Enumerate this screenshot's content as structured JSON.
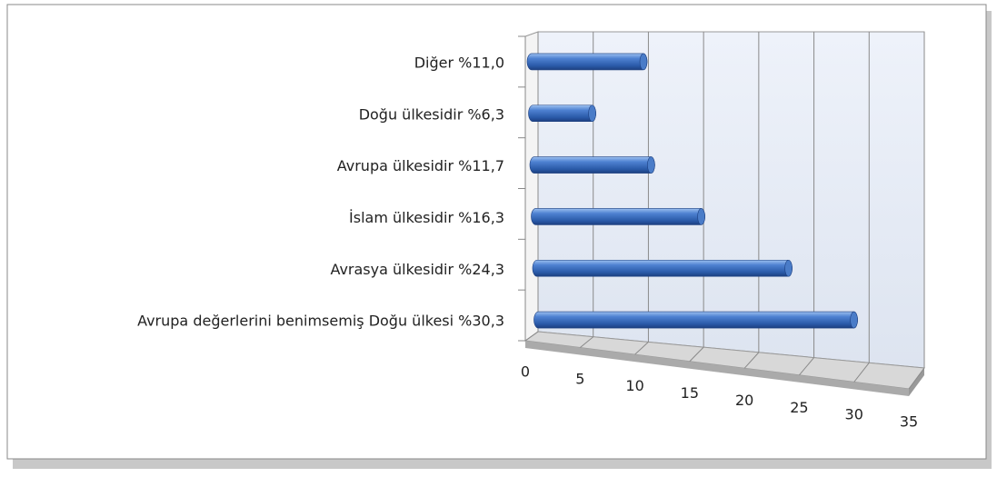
{
  "chart_data": {
    "type": "bar",
    "orientation": "horizontal",
    "categories": [
      "Diğer %11,0",
      "Doğu ülkesidir %6,3",
      "Avrupa ülkesidir %11,7",
      "İslam ülkesidir %16,3",
      "Avrasya ülkesidir %24,3",
      "Avrupa değerlerini  benimsemiş Doğu ülkesi %30,3"
    ],
    "values": [
      11.0,
      6.3,
      11.7,
      16.3,
      24.3,
      30.3
    ],
    "color": "#3a6cc0",
    "xlim": [
      0,
      35
    ],
    "xticks": [
      0,
      5,
      10,
      15,
      20,
      25,
      30,
      35
    ],
    "grid": true
  }
}
